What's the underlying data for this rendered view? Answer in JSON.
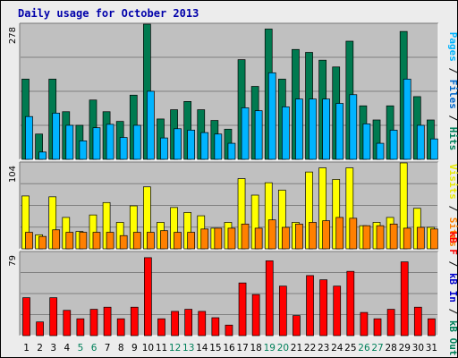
{
  "chart_data": [
    {
      "type": "bar",
      "title": "Daily usage for October 2013",
      "panel": "top",
      "ymax_label": "278",
      "ylim": [
        0,
        278
      ],
      "right_label_parts": [
        {
          "text": "Pages",
          "color": "#00b4ff"
        },
        {
          "text": " / ",
          "color": "#000000"
        },
        {
          "text": "Files",
          "color": "#0066cc"
        },
        {
          "text": " / ",
          "color": "#000000"
        },
        {
          "text": "Hits",
          "color": "#00805a"
        }
      ],
      "categories": [
        "1",
        "2",
        "3",
        "4",
        "5",
        "6",
        "7",
        "8",
        "9",
        "10",
        "11",
        "12",
        "13",
        "14",
        "15",
        "16",
        "17",
        "18",
        "19",
        "20",
        "21",
        "22",
        "23",
        "24",
        "25",
        "26",
        "27",
        "28",
        "29",
        "30",
        "31"
      ],
      "series": [
        {
          "name": "Hits",
          "color": "#007a50",
          "values": [
            165,
            52,
            165,
            98,
            70,
            122,
            98,
            78,
            132,
            278,
            83,
            102,
            119,
            102,
            80,
            62,
            205,
            150,
            268,
            165,
            226,
            220,
            204,
            190,
            243,
            110,
            81,
            110,
            263,
            129,
            81
          ]
        },
        {
          "name": "Files",
          "color": "#00b4ff",
          "values": [
            88,
            15,
            95,
            70,
            38,
            65,
            72,
            45,
            70,
            140,
            44,
            63,
            60,
            55,
            52,
            33,
            106,
            100,
            178,
            108,
            124,
            124,
            124,
            115,
            133,
            73,
            33,
            60,
            165,
            70,
            42
          ]
        }
      ]
    },
    {
      "type": "bar",
      "panel": "middle",
      "ymax_label": "104",
      "ylim": [
        0,
        104
      ],
      "right_label_parts": [
        {
          "text": "Visits",
          "color": "#e8e800"
        },
        {
          "text": " / ",
          "color": "#000000"
        },
        {
          "text": "Sites",
          "color": "#ff8000"
        }
      ],
      "categories": [
        "1",
        "2",
        "3",
        "4",
        "5",
        "6",
        "7",
        "8",
        "9",
        "10",
        "11",
        "12",
        "13",
        "14",
        "15",
        "16",
        "17",
        "18",
        "19",
        "20",
        "21",
        "22",
        "23",
        "24",
        "25",
        "26",
        "27",
        "28",
        "29",
        "30",
        "31"
      ],
      "series": [
        {
          "name": "Visits",
          "color": "#ffff00",
          "values": [
            64,
            17,
            63,
            38,
            21,
            41,
            56,
            32,
            52,
            75,
            32,
            50,
            44,
            40,
            25,
            32,
            85,
            65,
            80,
            71,
            32,
            93,
            98,
            84,
            98,
            28,
            32,
            38,
            104,
            49,
            26
          ]
        },
        {
          "name": "Sites",
          "color": "#ff8000",
          "values": [
            20,
            15,
            23,
            20,
            20,
            20,
            20,
            16,
            20,
            20,
            22,
            20,
            20,
            24,
            25,
            25,
            30,
            25,
            35,
            26,
            30,
            32,
            34,
            38,
            37,
            28,
            28,
            30,
            25,
            26,
            24
          ]
        }
      ]
    },
    {
      "type": "bar",
      "panel": "bottom",
      "ymax_label": "79",
      "ylim": [
        0,
        79
      ],
      "right_label_parts": [
        {
          "text": "kB F",
          "color": "#ff0000"
        },
        {
          "text": " / ",
          "color": "#000000"
        },
        {
          "text": "kB In",
          "color": "#0000cc"
        },
        {
          "text": " / ",
          "color": "#000000"
        },
        {
          "text": "kB Out",
          "color": "#00805a"
        }
      ],
      "categories": [
        "1",
        "2",
        "3",
        "4",
        "5",
        "6",
        "7",
        "8",
        "9",
        "10",
        "11",
        "12",
        "13",
        "14",
        "15",
        "16",
        "17",
        "18",
        "19",
        "20",
        "21",
        "22",
        "23",
        "24",
        "25",
        "26",
        "27",
        "28",
        "29",
        "30",
        "31"
      ],
      "series": [
        {
          "name": "kB F",
          "color": "#ff0000",
          "values": [
            36,
            13,
            36,
            24,
            16,
            25,
            27,
            16,
            27,
            74,
            16,
            23,
            25,
            23,
            17,
            10,
            50,
            39,
            71,
            47,
            19,
            57,
            53,
            47,
            61,
            22,
            16,
            25,
            70,
            27,
            16
          ]
        }
      ],
      "x_label_colors": [
        "#000000",
        "#000000",
        "#000000",
        "#000000",
        "#00805a",
        "#00805a",
        "#000000",
        "#000000",
        "#000000",
        "#000000",
        "#000000",
        "#00805a",
        "#00805a",
        "#000000",
        "#000000",
        "#000000",
        "#000000",
        "#000000",
        "#00805a",
        "#00805a",
        "#000000",
        "#000000",
        "#000000",
        "#000000",
        "#000000",
        "#00805a",
        "#00805a",
        "#000000",
        "#000000",
        "#000000",
        "#000000"
      ]
    }
  ]
}
